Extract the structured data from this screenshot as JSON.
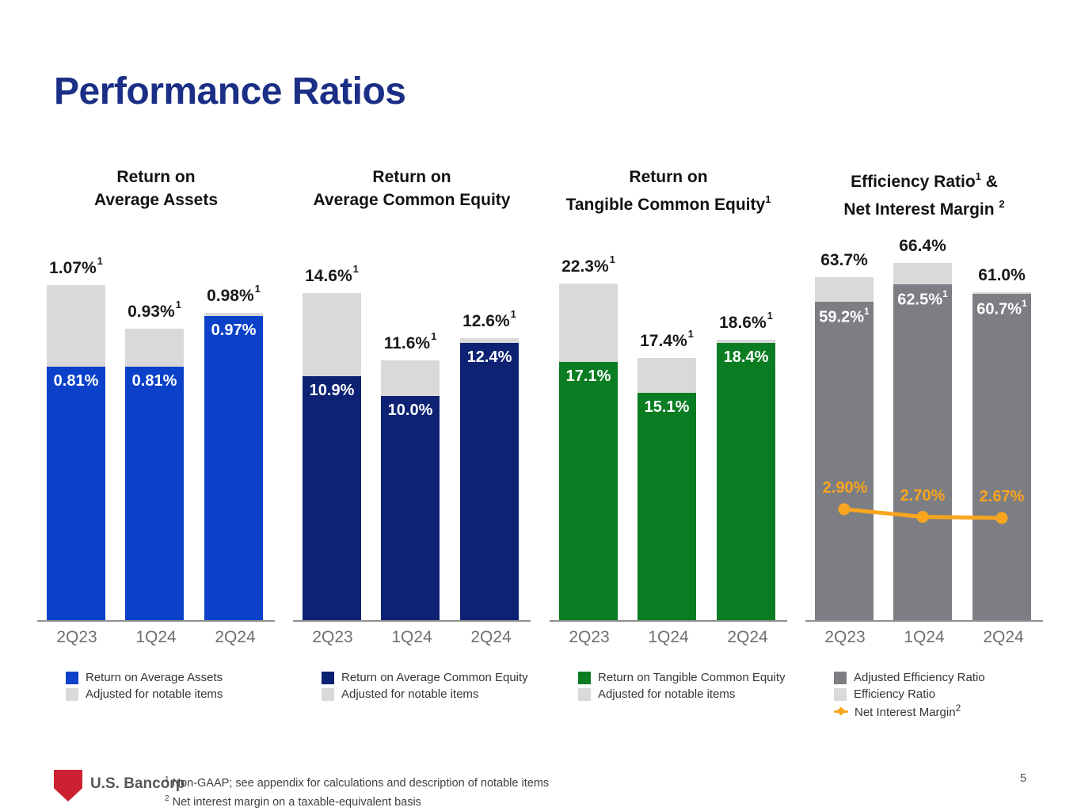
{
  "page": {
    "title": "Performance Ratios",
    "page_number": "5"
  },
  "footer": {
    "logo_text": "U.S. Bancorp",
    "footnotes": [
      {
        "marker": "1",
        "text": "Non-GAAP; see appendix for calculations and description of notable items"
      },
      {
        "marker": "2",
        "text": "Net interest margin on a taxable-equivalent basis"
      }
    ]
  },
  "colors": {
    "blue": "#0b41c9",
    "navy": "#0d2272",
    "green": "#0a7d22",
    "dark_gray": "#7d7e83",
    "light_gray": "#d9d9d9",
    "orange": "#f9a51e",
    "title_navy": "#1a2f85",
    "logo_red": "#cc2131"
  },
  "chart_data": [
    {
      "type": "bar",
      "title_tokens": [
        [
          {
            "t": "Return on"
          }
        ],
        [
          {
            "t": "Average Assets"
          }
        ]
      ],
      "categories": [
        "2Q23",
        "1Q24",
        "2Q24"
      ],
      "ylim": [
        0,
        1.15
      ],
      "series": [
        {
          "name": "Return on Average Assets",
          "role": "main",
          "color": "#0b41c9",
          "values": [
            0.81,
            0.81,
            0.97
          ],
          "labels": [
            "0.81%",
            "0.81%",
            "0.97%"
          ],
          "label_sup": ""
        },
        {
          "name": "Adjusted for notable items",
          "role": "adjusted",
          "color": "#d9d9d9",
          "values": [
            1.07,
            0.93,
            0.98
          ],
          "labels": [
            "1.07%",
            "0.93%",
            "0.98%"
          ],
          "label_sup": "1"
        }
      ],
      "legend": [
        {
          "label": "Return on Average Assets",
          "color": "#0b41c9",
          "marker": "square"
        },
        {
          "label": "Adjusted for notable items",
          "color": "#d9d9d9",
          "marker": "square"
        }
      ]
    },
    {
      "type": "bar",
      "title_tokens": [
        [
          {
            "t": "Return on"
          }
        ],
        [
          {
            "t": "Average Common Equity"
          }
        ]
      ],
      "categories": [
        "2Q23",
        "1Q24",
        "2Q24"
      ],
      "ylim": [
        0,
        16.1
      ],
      "series": [
        {
          "name": "Return on Average Common Equity",
          "role": "main",
          "color": "#0d2272",
          "values": [
            10.9,
            10.0,
            12.4
          ],
          "labels": [
            "10.9%",
            "10.0%",
            "12.4%"
          ],
          "label_sup": ""
        },
        {
          "name": "Adjusted for notable items",
          "role": "adjusted",
          "color": "#d9d9d9",
          "values": [
            14.6,
            11.6,
            12.6
          ],
          "labels": [
            "14.6%",
            "11.6%",
            "12.6%"
          ],
          "label_sup": "1"
        }
      ],
      "legend": [
        {
          "label": "Return on Average Common Equity",
          "color": "#0d2272",
          "marker": "square"
        },
        {
          "label": "Adjusted for notable items",
          "color": "#d9d9d9",
          "marker": "square"
        }
      ]
    },
    {
      "type": "bar",
      "title_tokens": [
        [
          {
            "t": "Return on"
          }
        ],
        [
          {
            "t": "Tangible Common Equity"
          },
          {
            "s": "1"
          }
        ]
      ],
      "categories": [
        "2Q23",
        "1Q24",
        "2Q24"
      ],
      "ylim": [
        0,
        23.9
      ],
      "series": [
        {
          "name": "Return on Tangible Common Equity",
          "role": "main",
          "color": "#0a7d22",
          "values": [
            17.1,
            15.1,
            18.4
          ],
          "labels": [
            "17.1%",
            "15.1%",
            "18.4%"
          ],
          "label_sup": ""
        },
        {
          "name": "Adjusted for notable items",
          "role": "adjusted",
          "color": "#d9d9d9",
          "values": [
            22.3,
            17.4,
            18.6
          ],
          "labels": [
            "22.3%",
            "17.4%",
            "18.6%"
          ],
          "label_sup": "1"
        }
      ],
      "legend": [
        {
          "label": "Return on Tangible Common Equity",
          "color": "#0a7d22",
          "marker": "square"
        },
        {
          "label": "Adjusted for notable items",
          "color": "#d9d9d9",
          "marker": "square"
        }
      ]
    },
    {
      "type": "bar",
      "title_tokens": [
        [
          {
            "t": "Efficiency Ratio"
          },
          {
            "s": "1"
          },
          {
            "t": " &"
          }
        ],
        [
          {
            "t": "Net Interest Margin "
          },
          {
            "s": "2"
          }
        ]
      ],
      "categories": [
        "2Q23",
        "1Q24",
        "2Q24"
      ],
      "ylim": [
        0,
        67
      ],
      "series": [
        {
          "name": "Adjusted Efficiency Ratio",
          "role": "main",
          "color": "#7d7e83",
          "values": [
            59.2,
            62.5,
            60.7
          ],
          "labels": [
            "59.2%",
            "62.5%",
            "60.7%"
          ],
          "label_sup": "1"
        },
        {
          "name": "Efficiency Ratio",
          "role": "adjusted",
          "color": "#d9d9d9",
          "values": [
            63.7,
            66.4,
            61.0
          ],
          "labels": [
            "63.7%",
            "66.4%",
            "61.0%"
          ],
          "label_sup": ""
        }
      ],
      "line_series": {
        "name": "Net Interest Margin",
        "sup": "2",
        "color": "#f9a51e",
        "values": [
          2.9,
          2.7,
          2.67
        ],
        "labels": [
          "2.90%",
          "2.70%",
          "2.67%"
        ]
      },
      "legend": [
        {
          "label": "Adjusted Efficiency Ratio",
          "color": "#7d7e83",
          "marker": "square"
        },
        {
          "label": "Efficiency Ratio",
          "color": "#d9d9d9",
          "marker": "square"
        },
        {
          "label": "Net Interest Margin",
          "sup": "2",
          "color": "#f9a51e",
          "marker": "line-diamond"
        }
      ]
    }
  ]
}
